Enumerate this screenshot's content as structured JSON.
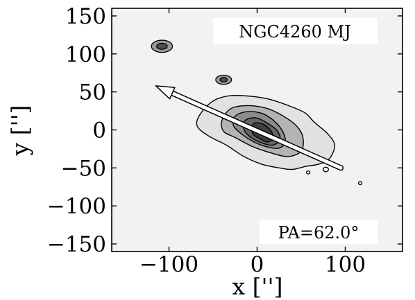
{
  "chart_data": {
    "type": "contour",
    "title": "",
    "galaxy_label": "NGC4260 MJ",
    "pa_label": "PA=62.0°",
    "position_angle_deg": 62.0,
    "xlabel": "x ['']",
    "ylabel": "y ['']",
    "xlim": [
      -165,
      165
    ],
    "ylim": [
      -160,
      160
    ],
    "x_ticks": [
      -100,
      0,
      100
    ],
    "x_tick_labels": [
      "−100",
      "0",
      "100"
    ],
    "y_ticks": [
      150,
      100,
      50,
      0,
      -50,
      -100,
      -150
    ],
    "y_tick_labels": [
      "150",
      "100",
      "50",
      "0",
      "−50",
      "−100",
      "−150"
    ],
    "grid": false,
    "major_axis_arrow": {
      "tail": [
        95,
        -50
      ],
      "head": [
        -115,
        58
      ]
    },
    "contour_levels": [
      {
        "level": 1,
        "fill": "#e2e2e2",
        "points": [
          [
            -65,
            20
          ],
          [
            -50,
            38
          ],
          [
            -30,
            45
          ],
          [
            -5,
            44
          ],
          [
            15,
            40
          ],
          [
            40,
            30
          ],
          [
            55,
            22
          ],
          [
            65,
            10
          ],
          [
            80,
            -5
          ],
          [
            88,
            -20
          ],
          [
            82,
            -38
          ],
          [
            70,
            -45
          ],
          [
            55,
            -48
          ],
          [
            40,
            -52
          ],
          [
            25,
            -50
          ],
          [
            5,
            -45
          ],
          [
            -15,
            -35
          ],
          [
            -35,
            -20
          ],
          [
            -55,
            -8
          ],
          [
            -68,
            5
          ]
        ]
      },
      {
        "level": 2,
        "fill": "#b3b3b3",
        "points": [
          [
            -40,
            12
          ],
          [
            -30,
            28
          ],
          [
            -10,
            32
          ],
          [
            12,
            28
          ],
          [
            30,
            18
          ],
          [
            45,
            5
          ],
          [
            52,
            -10
          ],
          [
            50,
            -28
          ],
          [
            35,
            -35
          ],
          [
            15,
            -30
          ],
          [
            -5,
            -22
          ],
          [
            -25,
            -10
          ],
          [
            -38,
            -2
          ]
        ]
      },
      {
        "level": 3,
        "fill": "#8c8c8c",
        "points": [
          [
            -25,
            18
          ],
          [
            -12,
            24
          ],
          [
            5,
            22
          ],
          [
            18,
            13
          ],
          [
            28,
            0
          ],
          [
            32,
            -15
          ],
          [
            25,
            -24
          ],
          [
            10,
            -22
          ],
          [
            -5,
            -15
          ],
          [
            -18,
            -5
          ],
          [
            -27,
            6
          ]
        ]
      },
      {
        "level": 4,
        "fill": "#666666",
        "points": [
          [
            -14,
            12
          ],
          [
            -2,
            16
          ],
          [
            10,
            10
          ],
          [
            22,
            0
          ],
          [
            26,
            -12
          ],
          [
            18,
            -20
          ],
          [
            5,
            -17
          ],
          [
            -8,
            -9
          ],
          [
            -15,
            1
          ]
        ]
      },
      {
        "level": 5,
        "fill": "#3f3f3f",
        "points": [
          [
            -4,
            8
          ],
          [
            6,
            8
          ],
          [
            15,
            0
          ],
          [
            18,
            -10
          ],
          [
            12,
            -16
          ],
          [
            4,
            -12
          ],
          [
            -5,
            -5
          ]
        ]
      }
    ],
    "compact_sources": [
      {
        "x": -108,
        "y": 110,
        "rings": [
          [
            12,
            8,
            "#9a9a9a"
          ],
          [
            6,
            4,
            "#4f4f4f"
          ]
        ]
      },
      {
        "x": -38,
        "y": 66,
        "rings": [
          [
            9,
            6,
            "#9a9a9a"
          ],
          [
            4,
            3,
            "#4f4f4f"
          ]
        ]
      },
      {
        "x": 78,
        "y": -52,
        "rings": [
          [
            3,
            3,
            "#f2f2f2"
          ]
        ]
      },
      {
        "x": 117,
        "y": -70,
        "rings": [
          [
            2,
            2,
            "#f2f2f2"
          ]
        ]
      },
      {
        "x": 58,
        "y": -56,
        "rings": [
          [
            2,
            2,
            "#f2f2f2"
          ]
        ]
      }
    ],
    "colors": {
      "background": "#f2f2f2",
      "frame": "#000000",
      "contour_line": "#000000",
      "arrow": "#ffffff",
      "label_box": "#ffffff"
    }
  }
}
